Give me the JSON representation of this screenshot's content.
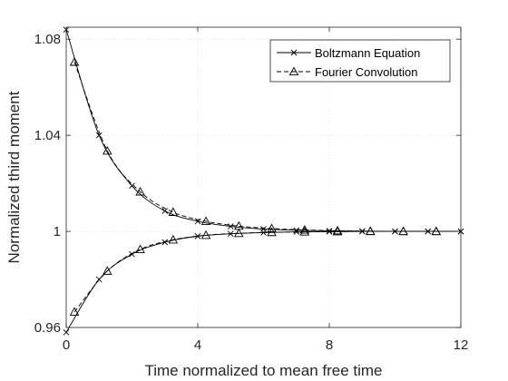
{
  "chart_data": {
    "type": "line",
    "xlabel": "Time normalized to mean free time",
    "ylabel": "Normalized third moment",
    "xlim": [
      0,
      12
    ],
    "ylim": [
      0.96,
      1.085
    ],
    "xticks": [
      0,
      4,
      8,
      12
    ],
    "xtick_labels": [
      "0",
      "4",
      "8",
      "12"
    ],
    "yticks": [
      0.96,
      1,
      1.04,
      1.08
    ],
    "ytick_labels": [
      "0.96",
      "1",
      "1.04",
      "1.08"
    ],
    "grid": true,
    "legend_position": "top-right",
    "colors": {
      "line": "#000000",
      "grid": "#d9d9d9",
      "axis": "#262626"
    },
    "series": [
      {
        "name": "Boltzmann Equation",
        "marker": "x",
        "style": "solid",
        "x": [
          0,
          1,
          2,
          3,
          4,
          5,
          6,
          7,
          8,
          9,
          10,
          11,
          12
        ],
        "y": [
          1.084,
          1.04,
          1.019,
          1.0085,
          1.0042,
          1.0021,
          1.001,
          1.0005,
          1.0002,
          1.0001,
          1.0,
          1.0,
          1.0
        ]
      },
      {
        "name": "Boltzmann Equation",
        "marker": "x",
        "style": "solid",
        "x": [
          0,
          1,
          2,
          3,
          4,
          5,
          6,
          7,
          8,
          9,
          10,
          11,
          12
        ],
        "y": [
          0.958,
          0.98,
          0.9905,
          0.9955,
          0.998,
          0.999,
          0.9995,
          0.9998,
          0.9999,
          1.0,
          1.0,
          1.0,
          1.0
        ]
      },
      {
        "name": "Fourier Convolution",
        "marker": "triangle",
        "style": "dashed",
        "x": [
          0.25,
          1.25,
          2.25,
          3.25,
          4.25,
          5.25,
          6.25,
          7.25,
          8.25,
          9.25,
          10.25,
          11.25
        ],
        "y": [
          1.0705,
          1.0335,
          1.0165,
          1.008,
          1.0042,
          1.0022,
          1.0012,
          1.0006,
          1.0003,
          1.0001,
          1.0,
          1.0
        ]
      },
      {
        "name": "Fourier Convolution",
        "marker": "triangle",
        "style": "dashed",
        "x": [
          0.25,
          1.25,
          2.25,
          3.25,
          4.25,
          5.25,
          6.25,
          7.25,
          8.25,
          9.25,
          10.25,
          11.25
        ],
        "y": [
          0.9665,
          0.9835,
          0.9925,
          0.9965,
          0.9984,
          0.9992,
          0.9996,
          0.9998,
          0.9999,
          1.0,
          1.0,
          1.0
        ]
      }
    ],
    "legend": [
      {
        "label": "Boltzmann Equation",
        "marker": "x",
        "style": "solid"
      },
      {
        "label": "Fourier Convolution",
        "marker": "triangle",
        "style": "dashed"
      }
    ]
  }
}
